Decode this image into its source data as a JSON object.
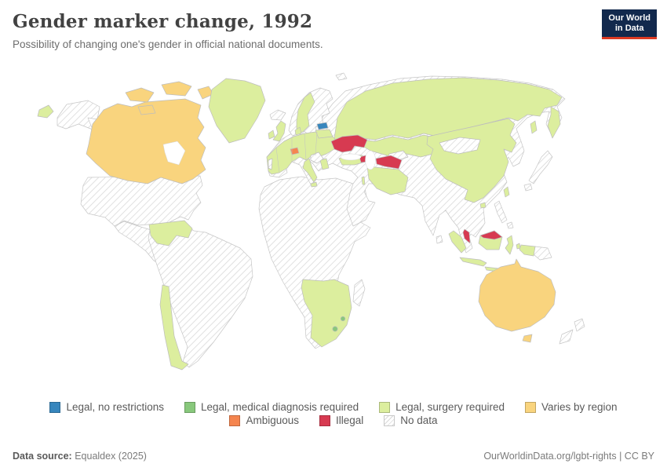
{
  "header": {
    "title": "Gender marker change, 1992",
    "subtitle": "Possibility of changing one's gender in official national documents.",
    "logo_line1": "Our World",
    "logo_line2": "in Data"
  },
  "palette": {
    "legal_no_restrictions": "#3786bd",
    "legal_medical": "#88c87c",
    "legal_surgery": "#dcee9e",
    "varies_by_region": "#f9d47e",
    "ambiguous": "#f5854f",
    "illegal": "#d73a51",
    "no_data_hatch": "#d9d9d9",
    "border": "#c6c6c6",
    "water": "#ffffff",
    "logo_bg": "#12294d",
    "logo_underline": "#dc3a23"
  },
  "legend": {
    "rows": [
      [
        {
          "key": "legal_no_restrictions",
          "label": "Legal, no restrictions"
        },
        {
          "key": "legal_medical",
          "label": "Legal, medical diagnosis required"
        },
        {
          "key": "legal_surgery",
          "label": "Legal, surgery required"
        },
        {
          "key": "varies_by_region",
          "label": "Varies by region"
        }
      ],
      [
        {
          "key": "ambiguous",
          "label": "Ambiguous"
        },
        {
          "key": "illegal",
          "label": "Illegal"
        },
        {
          "key": "no_data",
          "label": "No data"
        }
      ]
    ]
  },
  "map_data": {
    "type": "choropleth_world_map",
    "year": 1992,
    "categories": {
      "legal_no_restrictions": [
        "Estonia"
      ],
      "legal_medical": [
        "Lesotho",
        "Eswatini"
      ],
      "legal_surgery": [
        "Greenland",
        "Russia",
        "Kazakhstan",
        "China",
        "Taiwan",
        "Iran",
        "Turkey",
        "Israel",
        "United Kingdom",
        "Ireland",
        "France",
        "Spain",
        "Germany",
        "Italy",
        "Sweden",
        "Poland",
        "Romania",
        "Denmark",
        "Greece",
        "Baltics (Latvia, Lithuania)",
        "Colombia",
        "Venezuela",
        "Chile",
        "Namibia",
        "South Africa",
        "Indonesia"
      ],
      "varies_by_region": [
        "Canada",
        "Australia"
      ],
      "ambiguous": [
        "Switzerland"
      ],
      "illegal": [
        "Ukraine",
        "Azerbaijan",
        "Turkmenistan",
        "Malaysia"
      ],
      "no_data": [
        "United States",
        "Alaska",
        "Mexico",
        "Central America",
        "Cuba",
        "Brazil",
        "Argentina",
        "Peru",
        "Bolivia",
        "Most of Africa",
        "Madagascar",
        "Iceland",
        "Norway",
        "Finland",
        "Portugal",
        "Balkans",
        "Saudi Arabia",
        "Middle East",
        "India",
        "Pakistan",
        "Afghanistan",
        "Uzbekistan",
        "Mongolia",
        "Japan",
        "Korea",
        "Myanmar",
        "Thailand",
        "Vietnam",
        "Philippines",
        "Sri Lanka",
        "Papua New Guinea",
        "New Zealand"
      ]
    }
  },
  "footer": {
    "source_label": "Data source:",
    "source_value": " Equaldex (2025)",
    "right_text": "OurWorldinData.org/lgbt-rights | CC BY"
  }
}
